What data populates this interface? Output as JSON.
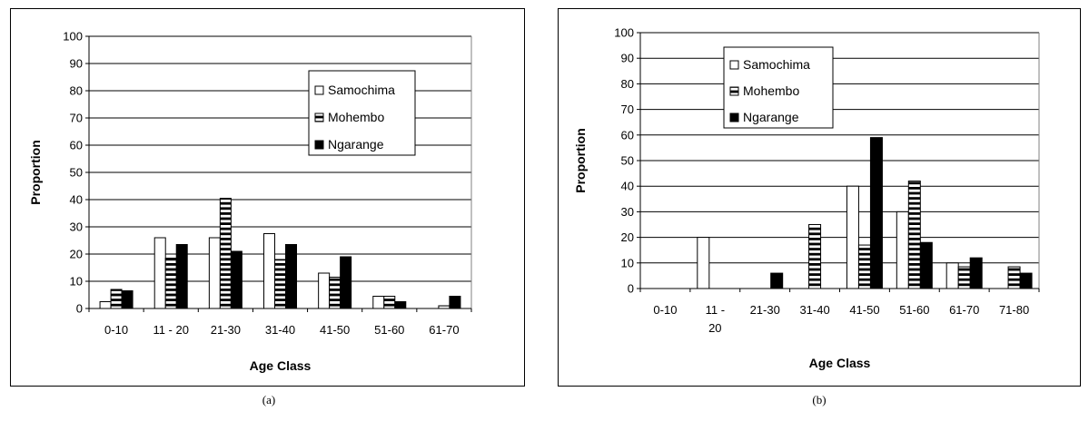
{
  "patterns": {
    "Samochima": "open-white",
    "Mohembo": "horizontal-stripes",
    "Ngarange": "solid-black"
  },
  "colors": {
    "bar_outline": "#000000",
    "solid_fill": "#000000",
    "open_fill": "#ffffff",
    "gridline": "#000000",
    "frame": "#000000"
  },
  "charts": [
    {
      "caption": "(a)",
      "chart_data": {
        "type": "bar",
        "categories": [
          "0-10",
          "11 - 20",
          "21-30",
          "31-40",
          "41-50",
          "51-60",
          "61-70"
        ],
        "series": [
          {
            "name": "Samochima",
            "values": [
              2.5,
              26,
              26,
              27.5,
              13,
              4.5,
              0
            ]
          },
          {
            "name": "Mohembo",
            "values": [
              7,
              18.5,
              40.5,
              18,
              11.5,
              4.5,
              1
            ]
          },
          {
            "name": "Ngarange",
            "values": [
              6.5,
              23.5,
              21,
              23.5,
              19,
              2.5,
              4.5
            ]
          }
        ],
        "ylim": [
          0,
          100
        ],
        "yticks": [
          "0",
          "10",
          "20",
          "30",
          "40",
          "50",
          "60",
          "70",
          "80",
          "90",
          "100"
        ],
        "xlabel": "Age Class",
        "ylabel": "Proportion",
        "legend": "inside-right",
        "grid": "horizontal"
      }
    },
    {
      "caption": "(b)",
      "chart_data": {
        "type": "bar",
        "categories": [
          "0-10",
          "11 - 20",
          "21-30",
          "31-40",
          "41-50",
          "51-60",
          "61-70",
          "71-80"
        ],
        "series": [
          {
            "name": "Samochima",
            "values": [
              0,
              20,
              0,
              0,
              40,
              30,
              10,
              0
            ]
          },
          {
            "name": "Mohembo",
            "values": [
              0,
              0,
              0,
              25,
              17,
              42,
              8.5,
              8.5
            ]
          },
          {
            "name": "Ngarange",
            "values": [
              0,
              0,
              6,
              0,
              59,
              18,
              12,
              6
            ]
          }
        ],
        "ylim": [
          0,
          100
        ],
        "yticks": [
          "0",
          "10",
          "20",
          "30",
          "40",
          "50",
          "60",
          "70",
          "80",
          "90",
          "100"
        ],
        "xlabel": "Age Class",
        "ylabel": "Proportion",
        "legend": "top-left",
        "grid": "horizontal"
      }
    }
  ]
}
